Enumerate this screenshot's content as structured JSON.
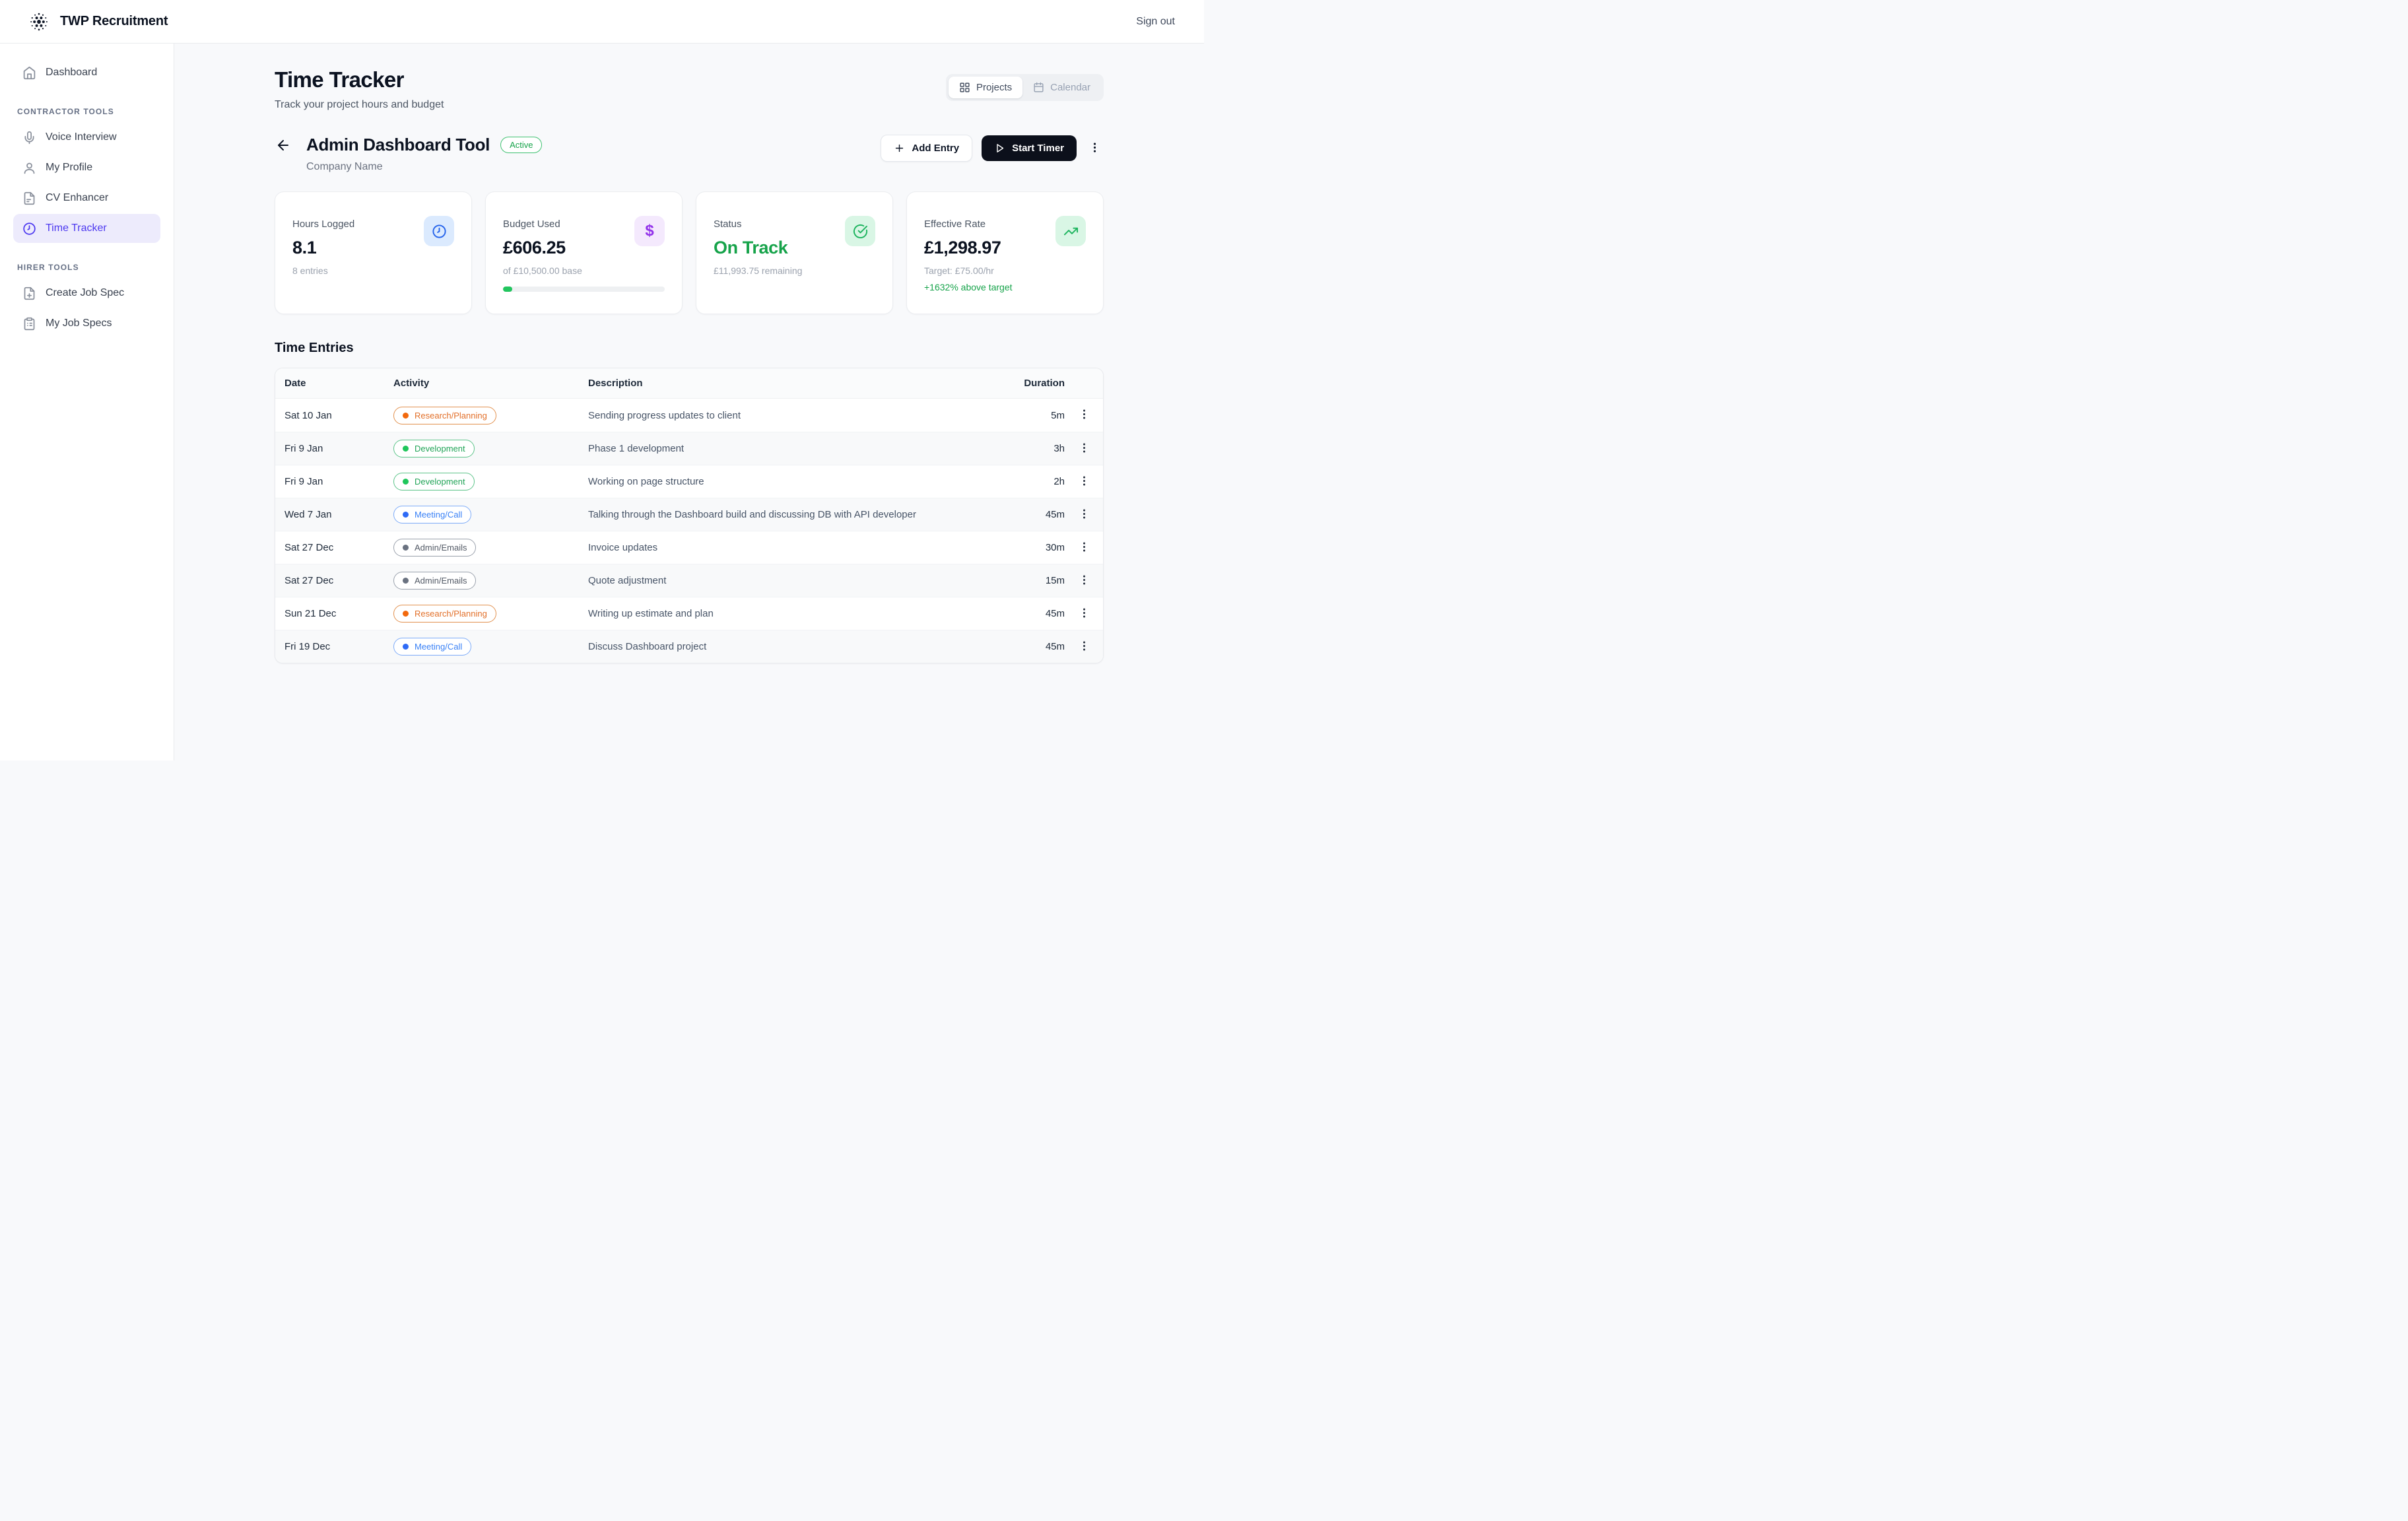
{
  "topbar": {
    "brand": "TWP Recruitment",
    "sign_out_label": "Sign out"
  },
  "sidebar": {
    "dashboard_label": "Dashboard",
    "sections": [
      {
        "title": "CONTRACTOR TOOLS",
        "items": [
          {
            "label": "Voice Interview"
          },
          {
            "label": "My Profile"
          },
          {
            "label": "CV Enhancer"
          },
          {
            "label": "Time Tracker"
          }
        ]
      },
      {
        "title": "HIRER TOOLS",
        "items": [
          {
            "label": "Create Job Spec"
          },
          {
            "label": "My Job Specs"
          }
        ]
      }
    ]
  },
  "page": {
    "title": "Time Tracker",
    "subtitle": "Track your project hours and budget",
    "toggle": {
      "projects_label": "Projects",
      "calendar_label": "Calendar"
    }
  },
  "project": {
    "name": "Admin Dashboard Tool",
    "badge": "Active",
    "company": "Company Name",
    "add_entry_label": "Add Entry",
    "start_timer_label": "Start Timer"
  },
  "stats": {
    "hours": {
      "label": "Hours Logged",
      "value": "8.1",
      "sub": "8 entries"
    },
    "budget": {
      "label": "Budget Used",
      "value": "£606.25",
      "sub": "of £10,500.00 base",
      "progress_pct": 5.8
    },
    "status": {
      "label": "Status",
      "value": "On Track",
      "sub": "£11,993.75 remaining"
    },
    "rate": {
      "label": "Effective Rate",
      "value": "£1,298.97",
      "sub": "Target: £75.00/hr",
      "delta": "+1632% above target"
    }
  },
  "entries": {
    "heading": "Time Entries",
    "columns": {
      "date": "Date",
      "activity": "Activity",
      "description": "Description",
      "duration": "Duration"
    },
    "rows": [
      {
        "date": "Sat 10 Jan",
        "activity": "Research/Planning",
        "type": "research",
        "description": "Sending progress updates to client",
        "duration": "5m"
      },
      {
        "date": "Fri 9 Jan",
        "activity": "Development",
        "type": "development",
        "description": "Phase 1 development",
        "duration": "3h"
      },
      {
        "date": "Fri 9 Jan",
        "activity": "Development",
        "type": "development",
        "description": "Working on page structure",
        "duration": "2h"
      },
      {
        "date": "Wed 7 Jan",
        "activity": "Meeting/Call",
        "type": "meeting",
        "description": "Talking through the Dashboard build and discussing DB with API developer",
        "duration": "45m"
      },
      {
        "date": "Sat 27 Dec",
        "activity": "Admin/Emails",
        "type": "admin",
        "description": "Invoice updates",
        "duration": "30m"
      },
      {
        "date": "Sat 27 Dec",
        "activity": "Admin/Emails",
        "type": "admin",
        "description": "Quote adjustment",
        "duration": "15m"
      },
      {
        "date": "Sun 21 Dec",
        "activity": "Research/Planning",
        "type": "research",
        "description": "Writing up estimate and plan",
        "duration": "45m"
      },
      {
        "date": "Fri 19 Dec",
        "activity": "Meeting/Call",
        "type": "meeting",
        "description": "Discuss Dashboard project",
        "duration": "45m"
      }
    ]
  },
  "colors": {
    "accent_indigo": "#4c38f0",
    "positive_green": "#16a34a",
    "progress_green": "#22c55e",
    "research_orange": "#e2702a",
    "meeting_blue": "#3b82f6",
    "admin_gray": "#6b7280",
    "timer_button_bg": "#0c101b"
  }
}
